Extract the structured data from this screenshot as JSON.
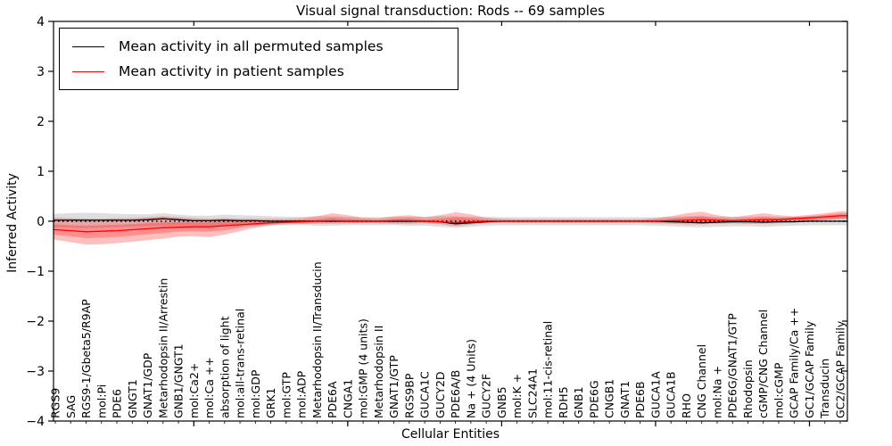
{
  "chart": {
    "title": "Visual signal transduction: Rods -- 69 samples",
    "xlabel": "Cellular Entities",
    "ylabel": "Inferred Activity"
  },
  "chart_data": {
    "type": "line",
    "title": "Visual signal transduction: Rods -- 69 samples",
    "xlabel": "Cellular Entities",
    "ylabel": "Inferred Activity",
    "ylim": [
      -4,
      4
    ],
    "grid": false,
    "legend_position": "upper left",
    "zero_line": {
      "y": 0,
      "style": "dotted",
      "color": "#000000"
    },
    "yticks": [
      -4,
      -3,
      -2,
      -1,
      0,
      1,
      2,
      3,
      4
    ],
    "ytick_labels": [
      "−4",
      "−3",
      "−2",
      "−1",
      "0",
      "1",
      "2",
      "3",
      "4"
    ],
    "xtick_major_every": 10,
    "categories": [
      "RGS9",
      "SAG",
      "RGS9-1/Gbeta5/R9AP",
      "mol:Pi",
      "PDE6",
      "GNGT1",
      "GNAT1/GDP",
      "Metarhodopsin II/Arrestin",
      "GNB1/GNGT1",
      "mol:Ca2+",
      "mol:Ca ++",
      "absorption of light",
      "mol:all-trans-retinal",
      "mol:GDP",
      "GRK1",
      "mol:GTP",
      "mol:ADP",
      "Metarhodopsin II/Transducin",
      "PDE6A",
      "CNGA1",
      "mol:GMP (4 units)",
      "Metarhodopsin II",
      "GNAT1/GTP",
      "RGS9BP",
      "GUCA1C",
      "GUCY2D",
      "PDE6A/B",
      "Na + (4 Units)",
      "GUCY2F",
      "GNB5",
      "mol:K +",
      "SLC24A1",
      "mol:11-cis-retinal",
      "RDH5",
      "GNB1",
      "PDE6G",
      "CNGB1",
      "GNAT1",
      "PDE6B",
      "GUCA1A",
      "GUCA1B",
      "RHO",
      "CNG Channel",
      "mol:Na +",
      "PDE6G/GNAT1/GTP",
      "Rhodopsin",
      "cGMP/CNG Channel",
      "mol:cGMP",
      "GCAP Family/Ca ++",
      "GC1/GCAP Family",
      "Transducin",
      "GC2/GCAP Family"
    ],
    "series": [
      {
        "name": "Mean activity in all permuted samples",
        "color": "#000000",
        "band_color": "#000000",
        "band_opacity": 0.13,
        "values": [
          0.02,
          0.02,
          0.02,
          0.02,
          0.02,
          0.02,
          0.03,
          0.05,
          0.03,
          0.01,
          0.01,
          0.02,
          0.01,
          0.01,
          0,
          0,
          0,
          0,
          0,
          0,
          0,
          0,
          0,
          0,
          0,
          -0.01,
          -0.05,
          -0.03,
          -0.01,
          0,
          0,
          0,
          0,
          0,
          0,
          0,
          0,
          0,
          0,
          0,
          -0.01,
          -0.02,
          -0.03,
          -0.02,
          -0.01,
          -0.01,
          -0.02,
          -0.01,
          -0.01,
          0,
          0,
          0
        ],
        "band_lo": [
          -0.12,
          -0.13,
          -0.14,
          -0.13,
          -0.12,
          -0.11,
          -0.1,
          -0.1,
          -0.09,
          -0.09,
          -0.09,
          -0.09,
          -0.09,
          -0.08,
          -0.08,
          -0.08,
          -0.08,
          -0.09,
          -0.09,
          -0.08,
          -0.08,
          -0.08,
          -0.08,
          -0.09,
          -0.09,
          -0.11,
          -0.13,
          -0.11,
          -0.09,
          -0.08,
          -0.08,
          -0.08,
          -0.08,
          -0.08,
          -0.08,
          -0.08,
          -0.08,
          -0.08,
          -0.08,
          -0.09,
          -0.1,
          -0.11,
          -0.12,
          -0.11,
          -0.1,
          -0.1,
          -0.11,
          -0.1,
          -0.09,
          -0.08,
          -0.08,
          -0.08
        ],
        "band_hi": [
          0.15,
          0.16,
          0.17,
          0.16,
          0.15,
          0.14,
          0.14,
          0.16,
          0.13,
          0.11,
          0.11,
          0.13,
          0.12,
          0.11,
          0.1,
          0.09,
          0.09,
          0.1,
          0.1,
          0.09,
          0.08,
          0.08,
          0.09,
          0.09,
          0.09,
          0.1,
          0.1,
          0.09,
          0.09,
          0.08,
          0.08,
          0.08,
          0.08,
          0.08,
          0.08,
          0.08,
          0.08,
          0.08,
          0.08,
          0.08,
          0.09,
          0.1,
          0.1,
          0.09,
          0.09,
          0.09,
          0.1,
          0.09,
          0.09,
          0.09,
          0.09,
          0.09
        ]
      },
      {
        "name": "Mean activity in patient samples",
        "color": "#ff0000",
        "band_color": "#ff0000",
        "band_opacity": 0.25,
        "values": [
          -0.17,
          -0.19,
          -0.21,
          -0.2,
          -0.19,
          -0.17,
          -0.15,
          -0.13,
          -0.12,
          -0.11,
          -0.11,
          -0.09,
          -0.07,
          -0.05,
          -0.03,
          -0.02,
          -0.01,
          0,
          0.01,
          0,
          0,
          0,
          0.01,
          0.01,
          0,
          -0.01,
          -0.03,
          -0.01,
          0,
          0,
          0,
          0,
          0,
          0,
          0,
          0,
          0,
          0,
          0,
          0,
          0.01,
          0.02,
          0.03,
          0.02,
          0.01,
          0.02,
          0.03,
          0.03,
          0.05,
          0.07,
          0.09,
          0.11
        ],
        "band_lo": [
          -0.37,
          -0.42,
          -0.47,
          -0.46,
          -0.44,
          -0.41,
          -0.38,
          -0.35,
          -0.31,
          -0.3,
          -0.32,
          -0.27,
          -0.2,
          -0.13,
          -0.08,
          -0.06,
          -0.05,
          -0.05,
          -0.05,
          -0.04,
          -0.04,
          -0.04,
          -0.05,
          -0.05,
          -0.04,
          -0.06,
          -0.1,
          -0.07,
          -0.04,
          -0.03,
          -0.03,
          -0.03,
          -0.03,
          -0.03,
          -0.03,
          -0.03,
          -0.03,
          -0.03,
          -0.03,
          -0.04,
          -0.05,
          -0.06,
          -0.06,
          -0.05,
          -0.04,
          -0.05,
          -0.05,
          -0.04,
          -0.02,
          0,
          0.02,
          0.04
        ],
        "band_hi": [
          0.07,
          0.06,
          0.05,
          0.05,
          0.06,
          0.06,
          0.08,
          0.1,
          0.08,
          0.06,
          0.05,
          0.06,
          0.05,
          0.05,
          0.05,
          0.05,
          0.06,
          0.1,
          0.16,
          0.12,
          0.07,
          0.06,
          0.1,
          0.12,
          0.08,
          0.12,
          0.18,
          0.14,
          0.07,
          0.05,
          0.04,
          0.04,
          0.04,
          0.04,
          0.04,
          0.04,
          0.04,
          0.04,
          0.04,
          0.06,
          0.1,
          0.16,
          0.19,
          0.12,
          0.08,
          0.12,
          0.16,
          0.12,
          0.1,
          0.13,
          0.16,
          0.2
        ],
        "inner_lo": [
          -0.27,
          -0.3,
          -0.34,
          -0.33,
          -0.31,
          -0.29,
          -0.26,
          -0.24,
          -0.21,
          -0.2,
          -0.21,
          -0.18,
          -0.13,
          -0.09,
          -0.05,
          -0.04,
          -0.03,
          -0.02,
          -0.02,
          -0.02,
          -0.02,
          -0.02,
          -0.02,
          -0.02,
          -0.02,
          -0.03,
          -0.06,
          -0.04,
          -0.02,
          -0.01,
          -0.01,
          -0.01,
          -0.01,
          -0.01,
          -0.01,
          -0.01,
          -0.01,
          -0.01,
          -0.01,
          -0.02,
          -0.02,
          -0.02,
          -0.02,
          -0.02,
          -0.02,
          -0.02,
          -0.02,
          -0.01,
          0,
          0.02,
          0.04,
          0.06
        ],
        "inner_hi": [
          -0.06,
          -0.08,
          -0.09,
          -0.08,
          -0.07,
          -0.06,
          -0.04,
          -0.02,
          -0.02,
          -0.02,
          -0.02,
          -0.01,
          0,
          0,
          0.01,
          0.01,
          0.02,
          0.04,
          0.07,
          0.05,
          0.03,
          0.02,
          0.05,
          0.06,
          0.03,
          0.05,
          0.08,
          0.06,
          0.03,
          0.02,
          0.02,
          0.02,
          0.02,
          0.02,
          0.02,
          0.02,
          0.02,
          0.02,
          0.02,
          0.03,
          0.05,
          0.08,
          0.1,
          0.06,
          0.04,
          0.06,
          0.08,
          0.06,
          0.08,
          0.1,
          0.13,
          0.16
        ]
      }
    ]
  }
}
